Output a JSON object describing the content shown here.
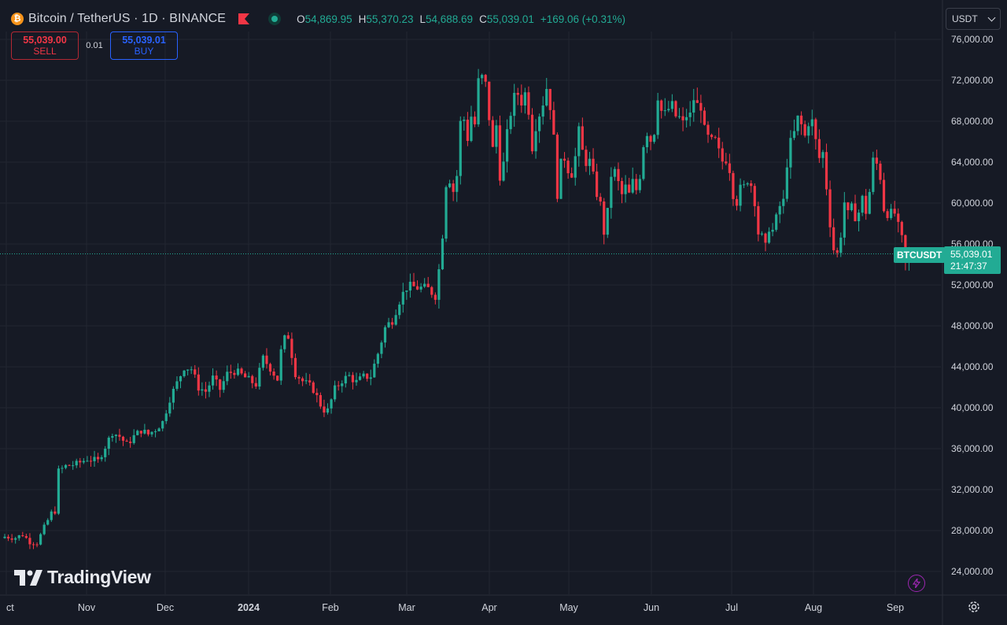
{
  "header": {
    "symbol_title": "Bitcoin / TetherUS · 1D · BINANCE",
    "ohlc": [
      {
        "label": "O",
        "value": "54,869.95"
      },
      {
        "label": "H",
        "value": "55,370.23"
      },
      {
        "label": "L",
        "value": "54,688.69"
      },
      {
        "label": "C",
        "value": "55,039.01"
      }
    ],
    "change": "+169.06 (+0.31%)"
  },
  "trade": {
    "sell_price": "55,039.00",
    "sell_label": "SELL",
    "spread": "0.01",
    "buy_price": "55,039.01",
    "buy_label": "BUY"
  },
  "currency": "USDT",
  "last_price": {
    "symbol": "BTCUSDT",
    "price": "55,039.01",
    "countdown": "21:47:37"
  },
  "branding": "TradingView",
  "colors": {
    "up": "#22ab94",
    "down": "#f23645",
    "background": "#161a25",
    "grid": "#222631",
    "text": "#d1d4dc"
  },
  "chart_data": {
    "type": "candlestick",
    "y_ticks": [
      "24,000.00",
      "28,000.00",
      "32,000.00",
      "36,000.00",
      "40,000.00",
      "44,000.00",
      "48,000.00",
      "52,000.00",
      "56,000.00",
      "60,000.00",
      "64,000.00",
      "68,000.00",
      "72,000.00",
      "76,000.00"
    ],
    "x_ticks": [
      "ct",
      "Nov",
      "Dec",
      "2024",
      "Feb",
      "Mar",
      "Apr",
      "May",
      "Jun",
      "Jul",
      "Aug",
      "Sep"
    ],
    "ylim": [
      22000,
      77000
    ],
    "approx_close_path": [
      [
        0,
        27400
      ],
      [
        3,
        27300
      ],
      [
        5,
        27600
      ],
      [
        7,
        26900
      ],
      [
        9,
        26800
      ],
      [
        11,
        28300
      ],
      [
        13,
        29700
      ],
      [
        14,
        29900
      ],
      [
        15,
        33800
      ],
      [
        17,
        34300
      ],
      [
        20,
        34500
      ],
      [
        23,
        35000
      ],
      [
        26,
        34800
      ],
      [
        28,
        36200
      ],
      [
        30,
        37600
      ],
      [
        32,
        37200
      ],
      [
        34,
        36400
      ],
      [
        36,
        37200
      ],
      [
        38,
        37800
      ],
      [
        40,
        37400
      ],
      [
        42,
        37900
      ],
      [
        44,
        38600
      ],
      [
        46,
        40900
      ],
      [
        48,
        42400
      ],
      [
        50,
        44000
      ],
      [
        52,
        43800
      ],
      [
        54,
        42000
      ],
      [
        56,
        41600
      ],
      [
        58,
        42900
      ],
      [
        60,
        41800
      ],
      [
        62,
        43300
      ],
      [
        64,
        43600
      ],
      [
        66,
        43200
      ],
      [
        68,
        42700
      ],
      [
        70,
        42300
      ],
      [
        72,
        44800
      ],
      [
        74,
        43900
      ],
      [
        76,
        42800
      ],
      [
        77,
        45500
      ],
      [
        78,
        46700
      ],
      [
        79,
        47000
      ],
      [
        81,
        43400
      ],
      [
        83,
        42600
      ],
      [
        85,
        42100
      ],
      [
        86,
        41800
      ],
      [
        88,
        40300
      ],
      [
        89,
        39800
      ],
      [
        90,
        39700
      ],
      [
        92,
        41800
      ],
      [
        94,
        42700
      ],
      [
        96,
        43100
      ],
      [
        98,
        42500
      ],
      [
        100,
        43000
      ],
      [
        102,
        43100
      ],
      [
        104,
        45300
      ],
      [
        106,
        47800
      ],
      [
        108,
        48600
      ],
      [
        110,
        50500
      ],
      [
        112,
        51800
      ],
      [
        114,
        51800
      ],
      [
        116,
        51700
      ],
      [
        118,
        51600
      ],
      [
        119,
        51300
      ],
      [
        120,
        51000
      ],
      [
        121,
        53500
      ],
      [
        122,
        57000
      ],
      [
        123,
        62000
      ],
      [
        124,
        62400
      ],
      [
        125,
        61200
      ],
      [
        126,
        62700
      ],
      [
        127,
        67800
      ],
      [
        128,
        68200
      ],
      [
        129,
        66400
      ],
      [
        130,
        68500
      ],
      [
        131,
        67700
      ],
      [
        132,
        71800
      ],
      [
        133,
        72200
      ],
      [
        134,
        71500
      ],
      [
        135,
        68400
      ],
      [
        136,
        65200
      ],
      [
        137,
        67600
      ],
      [
        138,
        62800
      ],
      [
        139,
        63800
      ],
      [
        140,
        66600
      ],
      [
        141,
        68900
      ],
      [
        142,
        70200
      ],
      [
        143,
        70700
      ],
      [
        144,
        70000
      ],
      [
        145,
        70700
      ],
      [
        146,
        69200
      ],
      [
        147,
        65600
      ],
      [
        148,
        67700
      ],
      [
        149,
        68800
      ],
      [
        150,
        69900
      ],
      [
        151,
        71300
      ],
      [
        152,
        69600
      ],
      [
        153,
        66200
      ],
      [
        154,
        61000
      ],
      [
        155,
        63700
      ],
      [
        156,
        64500
      ],
      [
        157,
        63400
      ],
      [
        158,
        63000
      ],
      [
        159,
        64500
      ],
      [
        160,
        66900
      ],
      [
        161,
        65000
      ],
      [
        162,
        64100
      ],
      [
        163,
        64000
      ],
      [
        164,
        62500
      ],
      [
        165,
        61000
      ],
      [
        166,
        59800
      ],
      [
        167,
        57200
      ],
      [
        168,
        59000
      ],
      [
        169,
        62800
      ],
      [
        170,
        63000
      ],
      [
        171,
        61900
      ],
      [
        172,
        60800
      ],
      [
        173,
        61500
      ],
      [
        174,
        60800
      ],
      [
        175,
        62000
      ],
      [
        176,
        61300
      ],
      [
        177,
        62800
      ],
      [
        178,
        65800
      ],
      [
        179,
        67000
      ],
      [
        180,
        66200
      ],
      [
        181,
        67100
      ],
      [
        182,
        70600
      ],
      [
        183,
        69000
      ],
      [
        184,
        68600
      ],
      [
        185,
        69200
      ],
      [
        186,
        69400
      ],
      [
        187,
        68500
      ],
      [
        188,
        68300
      ],
      [
        189,
        67700
      ],
      [
        190,
        68600
      ],
      [
        191,
        68500
      ],
      [
        192,
        70200
      ],
      [
        193,
        69500
      ],
      [
        194,
        69600
      ],
      [
        195,
        67000
      ],
      [
        196,
        66300
      ],
      [
        197,
        65900
      ],
      [
        198,
        66000
      ],
      [
        199,
        64900
      ],
      [
        200,
        64100
      ],
      [
        201,
        64400
      ],
      [
        202,
        63400
      ],
      [
        203,
        61000
      ],
      [
        204,
        60200
      ],
      [
        205,
        61300
      ],
      [
        206,
        61500
      ],
      [
        207,
        62400
      ],
      [
        208,
        61800
      ],
      [
        209,
        60300
      ],
      [
        210,
        57100
      ],
      [
        211,
        56600
      ],
      [
        212,
        55600
      ],
      [
        213,
        57700
      ],
      [
        214,
        57300
      ],
      [
        215,
        58400
      ],
      [
        216,
        59700
      ],
      [
        217,
        60100
      ],
      [
        218,
        64000
      ],
      [
        219,
        65800
      ],
      [
        220,
        66800
      ],
      [
        221,
        68200
      ],
      [
        222,
        67600
      ],
      [
        223,
        66500
      ],
      [
        224,
        68000
      ],
      [
        225,
        67900
      ],
      [
        226,
        66000
      ],
      [
        227,
        64400
      ],
      [
        228,
        64900
      ],
      [
        229,
        61600
      ],
      [
        230,
        58100
      ],
      [
        231,
        55500
      ],
      [
        232,
        55000
      ],
      [
        233,
        57000
      ],
      [
        234,
        60100
      ],
      [
        235,
        58800
      ],
      [
        236,
        59400
      ],
      [
        237,
        58800
      ],
      [
        238,
        59100
      ],
      [
        239,
        60400
      ],
      [
        240,
        59200
      ],
      [
        241,
        61100
      ],
      [
        242,
        64100
      ],
      [
        243,
        63800
      ],
      [
        244,
        62600
      ],
      [
        245,
        59500
      ],
      [
        246,
        59100
      ],
      [
        247,
        58900
      ],
      [
        248,
        59000
      ],
      [
        249,
        57600
      ],
      [
        250,
        56400
      ],
      [
        251,
        54100
      ],
      [
        252,
        54800
      ],
      [
        253,
        55039
      ]
    ]
  }
}
